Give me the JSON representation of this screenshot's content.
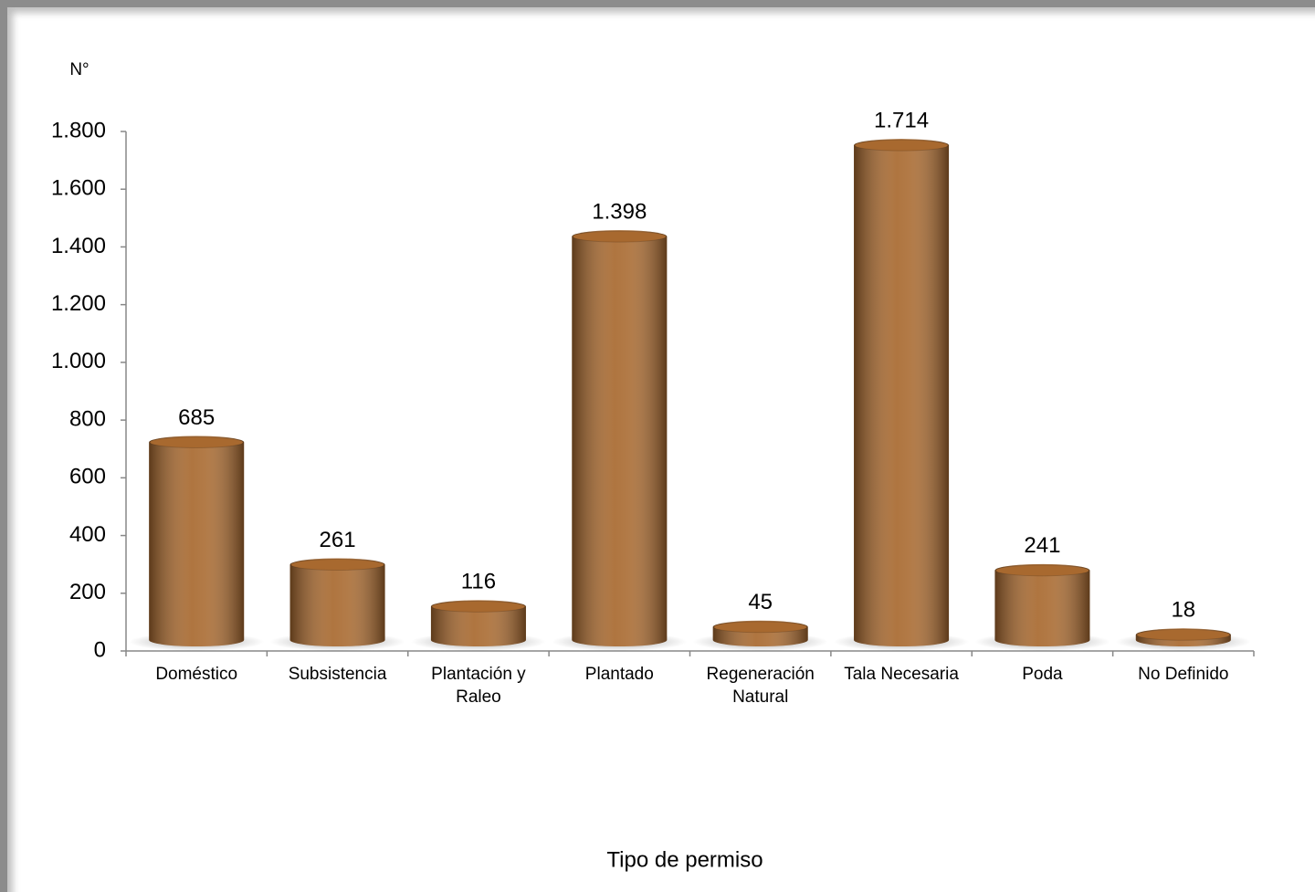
{
  "chart_data": {
    "type": "bar",
    "y_label": "N°",
    "x_label": "Tipo de permiso",
    "categories": [
      "Doméstico",
      "Subsistencia",
      "Plantación y Raleo",
      "Plantado",
      "Regeneración Natural",
      "Tala Necesaria",
      "Poda",
      "No Definido"
    ],
    "values": [
      685,
      261,
      116,
      1398,
      45,
      1714,
      241,
      18
    ],
    "value_labels": [
      "685",
      "261",
      "116",
      "1.398",
      "45",
      "1.714",
      "241",
      "18"
    ],
    "color": "#a8692f",
    "ylim": [
      0,
      1800
    ],
    "yticks": [
      0,
      200,
      400,
      600,
      800,
      {
        "value": 1000,
        "label": "1.000"
      },
      {
        "value": 1200,
        "label": "1.200"
      },
      {
        "value": 1400,
        "label": "1.400"
      },
      {
        "value": 1600,
        "label": "1.600"
      },
      {
        "value": 1800,
        "label": "1.800"
      }
    ],
    "grid": false
  }
}
